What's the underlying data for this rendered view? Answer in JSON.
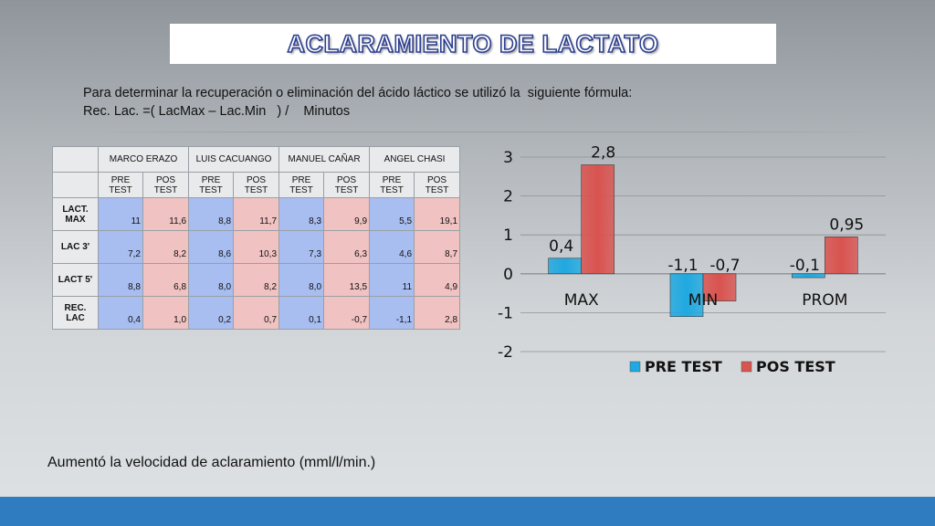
{
  "title": "ACLARAMIENTO DE LACTATO",
  "formula": {
    "line1": "Para determinar la recuperación o eliminación del ácido láctico se utilizó la  siguiente fórmula:",
    "line2": "Rec. Lac. =( LacMax – Lac.Min   ) /    Minutos"
  },
  "table": {
    "athletes": [
      "MARCO  ERAZO",
      "LUIS CACUANGO",
      "MANUEL CAÑAR",
      "ANGEL CHASI"
    ],
    "subheaders": [
      "PRE TEST",
      "POS TEST"
    ],
    "rows": [
      {
        "label": "LACT. MAX",
        "values": [
          "11",
          "11,6",
          "8,8",
          "11,7",
          "8,3",
          "9,9",
          "5,5",
          "19,1"
        ]
      },
      {
        "label": "LAC 3'",
        "values": [
          "7,2",
          "8,2",
          "8,6",
          "10,3",
          "7,3",
          "6,3",
          "4,6",
          "8,7"
        ]
      },
      {
        "label": "LACT 5'",
        "values": [
          "8,8",
          "6,8",
          "8,0",
          "8,2",
          "8,0",
          "13,5",
          "11",
          "4,9"
        ]
      },
      {
        "label": "REC. LAC",
        "values": [
          "0,4",
          "1,0",
          "0,2",
          "0,7",
          "0,1",
          "-0,7",
          "-1,1",
          "2,8"
        ]
      }
    ]
  },
  "chart_data": {
    "type": "bar",
    "categories": [
      "MAX",
      "MIN",
      "PROM"
    ],
    "series": [
      {
        "name": "PRE TEST",
        "values": [
          0.4,
          -1.1,
          -0.1
        ],
        "labels": [
          "0,4",
          "-1,1",
          "-0,1"
        ],
        "color": "#1fa9e0"
      },
      {
        "name": "POS TEST",
        "values": [
          2.8,
          -0.7,
          0.95
        ],
        "labels": [
          "2,8",
          "-0,7",
          "0,95"
        ],
        "color": "#d9534f"
      }
    ],
    "ylim": [
      -2,
      3
    ],
    "yticks": [
      3,
      2,
      1,
      0,
      -1,
      -2
    ],
    "grid": true,
    "legend": "bottom"
  },
  "footer": "Aumentó la velocidad de aclaramiento (mml/l/min.)"
}
